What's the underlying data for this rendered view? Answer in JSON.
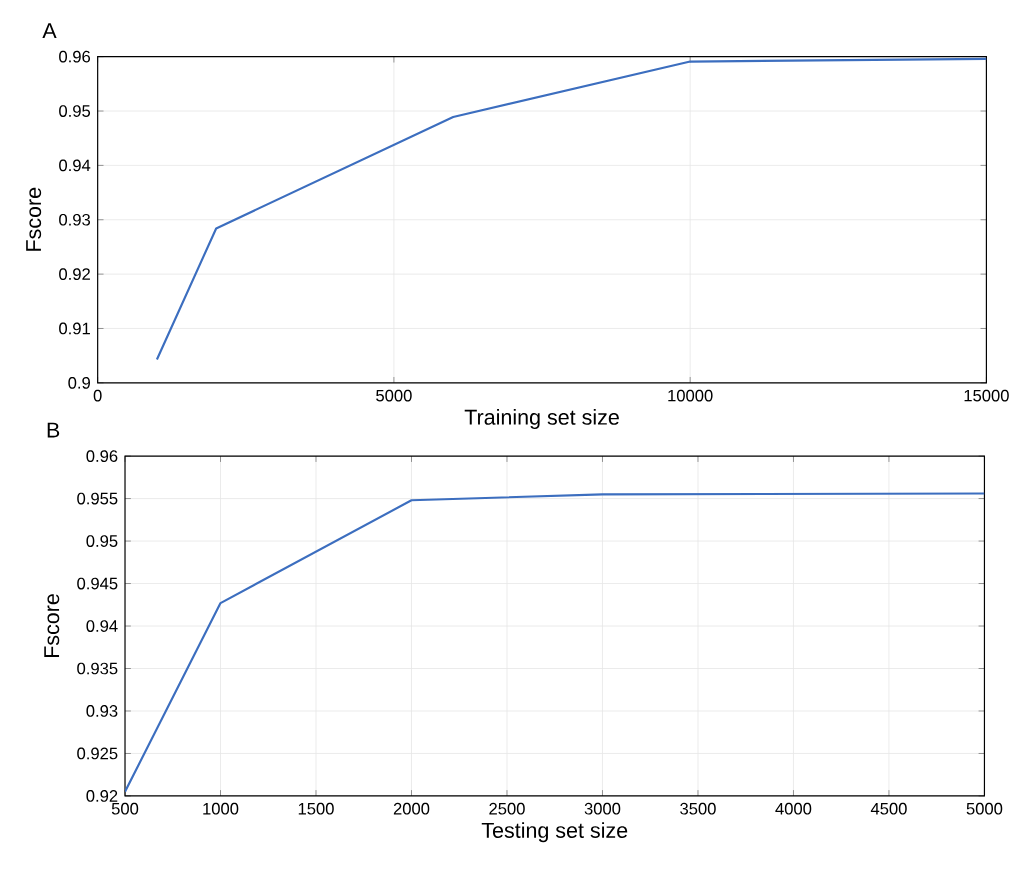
{
  "chart_data": [
    {
      "type": "line",
      "title": "A",
      "xlabel": "Training set size",
      "ylabel": "Fscore",
      "x": [
        1000,
        2000,
        6000,
        10000,
        15000
      ],
      "series": [
        {
          "color": "#3c6ebf",
          "values": [
            0.9043,
            0.9284,
            0.9489,
            0.9591,
            0.9596
          ]
        }
      ],
      "xlim": [
        0,
        15000
      ],
      "xticks": [
        0,
        5000,
        10000,
        15000
      ],
      "ylim": [
        0.9,
        0.96
      ],
      "yticks": [
        0.9,
        0.91,
        0.92,
        0.93,
        0.94,
        0.95,
        0.96
      ],
      "grid": true,
      "marker": "none",
      "line_style": "solid"
    },
    {
      "type": "line",
      "title": "B",
      "xlabel": "Testing set size",
      "ylabel": "Fscore",
      "x": [
        500,
        1000,
        2000,
        3000,
        5000
      ],
      "series": [
        {
          "color": "#3c6ebf",
          "values": [
            0.9205,
            0.9427,
            0.9548,
            0.9555,
            0.9556
          ]
        }
      ],
      "xlim": [
        500,
        5000
      ],
      "xticks": [
        500,
        1000,
        1500,
        2000,
        2500,
        3000,
        3500,
        4000,
        4500,
        5000
      ],
      "ylim": [
        0.92,
        0.96
      ],
      "yticks": [
        0.92,
        0.925,
        0.93,
        0.935,
        0.94,
        0.945,
        0.95,
        0.955,
        0.96
      ],
      "grid": true,
      "marker": "none",
      "line_style": "solid"
    }
  ]
}
